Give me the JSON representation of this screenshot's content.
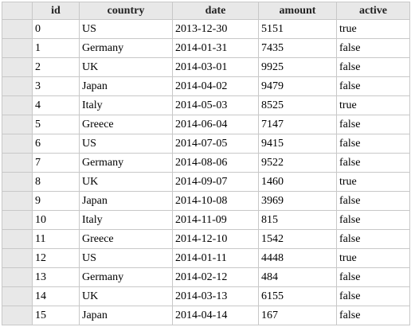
{
  "table": {
    "columns": [
      "id",
      "country",
      "date",
      "amount",
      "active"
    ],
    "rows": [
      {
        "id": "0",
        "country": "US",
        "date": "2013-12-30",
        "amount": "5151",
        "active": "true"
      },
      {
        "id": "1",
        "country": "Germany",
        "date": "2014-01-31",
        "amount": "7435",
        "active": "false"
      },
      {
        "id": "2",
        "country": "UK",
        "date": "2014-03-01",
        "amount": "9925",
        "active": "false"
      },
      {
        "id": "3",
        "country": "Japan",
        "date": "2014-04-02",
        "amount": "9479",
        "active": "false"
      },
      {
        "id": "4",
        "country": "Italy",
        "date": "2014-05-03",
        "amount": "8525",
        "active": "true"
      },
      {
        "id": "5",
        "country": "Greece",
        "date": "2014-06-04",
        "amount": "7147",
        "active": "false"
      },
      {
        "id": "6",
        "country": "US",
        "date": "2014-07-05",
        "amount": "9415",
        "active": "false"
      },
      {
        "id": "7",
        "country": "Germany",
        "date": "2014-08-06",
        "amount": "9522",
        "active": "false"
      },
      {
        "id": "8",
        "country": "UK",
        "date": "2014-09-07",
        "amount": "1460",
        "active": "true"
      },
      {
        "id": "9",
        "country": "Japan",
        "date": "2014-10-08",
        "amount": "3969",
        "active": "false"
      },
      {
        "id": "10",
        "country": "Italy",
        "date": "2014-11-09",
        "amount": "815",
        "active": "false"
      },
      {
        "id": "11",
        "country": "Greece",
        "date": "2014-12-10",
        "amount": "1542",
        "active": "false"
      },
      {
        "id": "12",
        "country": "US",
        "date": "2014-01-11",
        "amount": "4448",
        "active": "true"
      },
      {
        "id": "13",
        "country": "Germany",
        "date": "2014-02-12",
        "amount": "484",
        "active": "false"
      },
      {
        "id": "14",
        "country": "UK",
        "date": "2014-03-13",
        "amount": "6155",
        "active": "false"
      },
      {
        "id": "15",
        "country": "Japan",
        "date": "2014-04-14",
        "amount": "167",
        "active": "false"
      }
    ]
  }
}
